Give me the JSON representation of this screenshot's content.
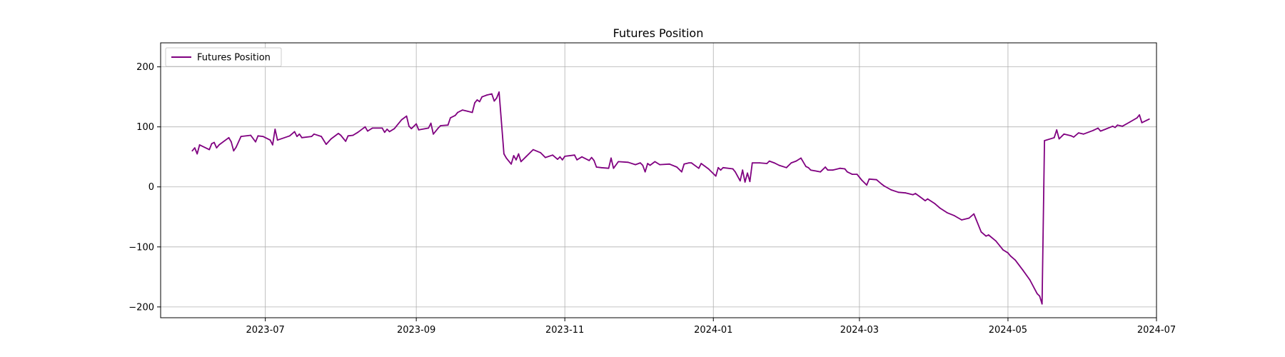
{
  "chart_data": {
    "type": "line",
    "title": "Futures Position",
    "xlabel": "",
    "ylabel": "",
    "grid": true,
    "legend_position": "top-left",
    "x_ticks": [
      "2023-07",
      "2023-09",
      "2023-11",
      "2024-01",
      "2024-03",
      "2024-05",
      "2024-07"
    ],
    "y_ticks": [
      200,
      100,
      0,
      -100,
      -200
    ],
    "xlim": [
      "2023-05-19",
      "2024-07-01"
    ],
    "ylim": [
      -218,
      240
    ],
    "series": [
      {
        "name": "Futures Position",
        "color": "#800080",
        "points": [
          [
            "2023-06-01",
            60
          ],
          [
            "2023-06-02",
            65
          ],
          [
            "2023-06-03",
            55
          ],
          [
            "2023-06-04",
            70
          ],
          [
            "2023-06-08",
            62
          ],
          [
            "2023-06-09",
            72
          ],
          [
            "2023-06-10",
            74
          ],
          [
            "2023-06-11",
            65
          ],
          [
            "2023-06-12",
            70
          ],
          [
            "2023-06-16",
            82
          ],
          [
            "2023-06-17",
            75
          ],
          [
            "2023-06-18",
            60
          ],
          [
            "2023-06-19",
            66
          ],
          [
            "2023-06-21",
            84
          ],
          [
            "2023-06-25",
            86
          ],
          [
            "2023-06-27",
            75
          ],
          [
            "2023-06-28",
            85
          ],
          [
            "2023-06-30",
            84
          ],
          [
            "2023-07-03",
            78
          ],
          [
            "2023-07-04",
            70
          ],
          [
            "2023-07-05",
            96
          ],
          [
            "2023-07-06",
            78
          ],
          [
            "2023-07-11",
            85
          ],
          [
            "2023-07-13",
            92
          ],
          [
            "2023-07-14",
            84
          ],
          [
            "2023-07-15",
            88
          ],
          [
            "2023-07-16",
            82
          ],
          [
            "2023-07-20",
            84
          ],
          [
            "2023-07-21",
            88
          ],
          [
            "2023-07-24",
            84
          ],
          [
            "2023-07-26",
            71
          ],
          [
            "2023-07-28",
            80
          ],
          [
            "2023-07-31",
            89
          ],
          [
            "2023-08-01",
            86
          ],
          [
            "2023-08-03",
            76
          ],
          [
            "2023-08-04",
            85
          ],
          [
            "2023-08-06",
            86
          ],
          [
            "2023-08-08",
            91
          ],
          [
            "2023-08-11",
            100
          ],
          [
            "2023-08-12",
            93
          ],
          [
            "2023-08-14",
            98
          ],
          [
            "2023-08-18",
            98
          ],
          [
            "2023-08-19",
            91
          ],
          [
            "2023-08-20",
            96
          ],
          [
            "2023-08-21",
            92
          ],
          [
            "2023-08-23",
            97
          ],
          [
            "2023-08-26",
            112
          ],
          [
            "2023-08-28",
            118
          ],
          [
            "2023-08-29",
            101
          ],
          [
            "2023-08-30",
            97
          ],
          [
            "2023-09-01",
            105
          ],
          [
            "2023-09-02",
            95
          ],
          [
            "2023-09-06",
            98
          ],
          [
            "2023-09-07",
            106
          ],
          [
            "2023-09-08",
            88
          ],
          [
            "2023-09-10",
            98
          ],
          [
            "2023-09-11",
            102
          ],
          [
            "2023-09-14",
            103
          ],
          [
            "2023-09-15",
            115
          ],
          [
            "2023-09-17",
            119
          ],
          [
            "2023-09-18",
            124
          ],
          [
            "2023-09-20",
            128
          ],
          [
            "2023-09-22",
            126
          ],
          [
            "2023-09-24",
            124
          ],
          [
            "2023-09-25",
            140
          ],
          [
            "2023-09-26",
            145
          ],
          [
            "2023-09-27",
            142
          ],
          [
            "2023-09-28",
            150
          ],
          [
            "2023-09-30",
            153
          ],
          [
            "2023-10-02",
            155
          ],
          [
            "2023-10-03",
            143
          ],
          [
            "2023-10-04",
            148
          ],
          [
            "2023-10-05",
            158
          ],
          [
            "2023-10-07",
            55
          ],
          [
            "2023-10-08",
            48
          ],
          [
            "2023-10-10",
            38
          ],
          [
            "2023-10-11",
            52
          ],
          [
            "2023-10-12",
            45
          ],
          [
            "2023-10-13",
            55
          ],
          [
            "2023-10-14",
            42
          ],
          [
            "2023-10-16",
            50
          ],
          [
            "2023-10-19",
            62
          ],
          [
            "2023-10-22",
            57
          ],
          [
            "2023-10-24",
            49
          ],
          [
            "2023-10-27",
            53
          ],
          [
            "2023-10-29",
            46
          ],
          [
            "2023-10-30",
            50
          ],
          [
            "2023-10-31",
            45
          ],
          [
            "2023-11-01",
            51
          ],
          [
            "2023-11-05",
            53
          ],
          [
            "2023-11-06",
            45
          ],
          [
            "2023-11-08",
            50
          ],
          [
            "2023-11-11",
            44
          ],
          [
            "2023-11-12",
            49
          ],
          [
            "2023-11-13",
            44
          ],
          [
            "2023-11-14",
            33
          ],
          [
            "2023-11-16",
            32
          ],
          [
            "2023-11-19",
            31
          ],
          [
            "2023-11-20",
            48
          ],
          [
            "2023-11-21",
            31
          ],
          [
            "2023-11-23",
            42
          ],
          [
            "2023-11-27",
            41
          ],
          [
            "2023-11-30",
            37
          ],
          [
            "2023-12-02",
            40
          ],
          [
            "2023-12-03",
            36
          ],
          [
            "2023-12-04",
            25
          ],
          [
            "2023-12-05",
            39
          ],
          [
            "2023-12-06",
            36
          ],
          [
            "2023-12-08",
            42
          ],
          [
            "2023-12-10",
            37
          ],
          [
            "2023-12-14",
            38
          ],
          [
            "2023-12-17",
            33
          ],
          [
            "2023-12-19",
            25
          ],
          [
            "2023-12-20",
            38
          ],
          [
            "2023-12-22",
            40
          ],
          [
            "2023-12-23",
            40
          ],
          [
            "2023-12-26",
            31
          ],
          [
            "2023-12-27",
            39
          ],
          [
            "2023-12-30",
            30
          ],
          [
            "2024-01-02",
            18
          ],
          [
            "2024-01-03",
            32
          ],
          [
            "2024-01-04",
            28
          ],
          [
            "2024-01-05",
            32
          ],
          [
            "2024-01-09",
            30
          ],
          [
            "2024-01-10",
            25
          ],
          [
            "2024-01-12",
            10
          ],
          [
            "2024-01-13",
            28
          ],
          [
            "2024-01-14",
            8
          ],
          [
            "2024-01-15",
            23
          ],
          [
            "2024-01-16",
            9
          ],
          [
            "2024-01-17",
            40
          ],
          [
            "2024-01-20",
            40
          ],
          [
            "2024-01-23",
            39
          ],
          [
            "2024-01-24",
            43
          ],
          [
            "2024-01-26",
            40
          ],
          [
            "2024-01-28",
            36
          ],
          [
            "2024-01-31",
            32
          ],
          [
            "2024-02-02",
            40
          ],
          [
            "2024-02-04",
            43
          ],
          [
            "2024-02-06",
            48
          ],
          [
            "2024-02-08",
            34
          ],
          [
            "2024-02-09",
            32
          ],
          [
            "2024-02-10",
            28
          ],
          [
            "2024-02-14",
            25
          ],
          [
            "2024-02-16",
            33
          ],
          [
            "2024-02-17",
            28
          ],
          [
            "2024-02-19",
            28
          ],
          [
            "2024-02-22",
            31
          ],
          [
            "2024-02-24",
            30
          ],
          [
            "2024-02-25",
            25
          ],
          [
            "2024-02-27",
            21
          ],
          [
            "2024-02-29",
            21
          ],
          [
            "2024-03-02",
            11
          ],
          [
            "2024-03-04",
            3
          ],
          [
            "2024-03-05",
            13
          ],
          [
            "2024-03-08",
            12
          ],
          [
            "2024-03-10",
            5
          ],
          [
            "2024-03-11",
            2
          ],
          [
            "2024-03-14",
            -5
          ],
          [
            "2024-03-17",
            -9
          ],
          [
            "2024-03-20",
            -10
          ],
          [
            "2024-03-23",
            -13
          ],
          [
            "2024-03-24",
            -11
          ],
          [
            "2024-03-26",
            -17
          ],
          [
            "2024-03-28",
            -23
          ],
          [
            "2024-03-29",
            -20
          ],
          [
            "2024-04-01",
            -28
          ],
          [
            "2024-04-03",
            -35
          ],
          [
            "2024-04-06",
            -43
          ],
          [
            "2024-04-09",
            -48
          ],
          [
            "2024-04-12",
            -55
          ],
          [
            "2024-04-15",
            -52
          ],
          [
            "2024-04-17",
            -45
          ],
          [
            "2024-04-18",
            -55
          ],
          [
            "2024-04-20",
            -75
          ],
          [
            "2024-04-22",
            -82
          ],
          [
            "2024-04-23",
            -80
          ],
          [
            "2024-04-26",
            -90
          ],
          [
            "2024-04-29",
            -105
          ],
          [
            "2024-05-01",
            -110
          ],
          [
            "2024-05-02",
            -115
          ],
          [
            "2024-05-04",
            -122
          ],
          [
            "2024-05-07",
            -138
          ],
          [
            "2024-05-10",
            -155
          ],
          [
            "2024-05-13",
            -178
          ],
          [
            "2024-05-14",
            -182
          ],
          [
            "2024-05-15",
            -195
          ],
          [
            "2024-05-16",
            77
          ],
          [
            "2024-05-20",
            82
          ],
          [
            "2024-05-21",
            95
          ],
          [
            "2024-05-22",
            80
          ],
          [
            "2024-05-24",
            88
          ],
          [
            "2024-05-27",
            85
          ],
          [
            "2024-05-28",
            83
          ],
          [
            "2024-05-30",
            90
          ],
          [
            "2024-06-01",
            88
          ],
          [
            "2024-06-05",
            94
          ],
          [
            "2024-06-07",
            98
          ],
          [
            "2024-06-08",
            93
          ],
          [
            "2024-06-10",
            96
          ],
          [
            "2024-06-13",
            101
          ],
          [
            "2024-06-14",
            99
          ],
          [
            "2024-06-15",
            103
          ],
          [
            "2024-06-17",
            101
          ],
          [
            "2024-06-20",
            108
          ],
          [
            "2024-06-23",
            115
          ],
          [
            "2024-06-24",
            120
          ],
          [
            "2024-06-25",
            107
          ],
          [
            "2024-06-27",
            111
          ],
          [
            "2024-06-28",
            113
          ]
        ]
      }
    ]
  }
}
